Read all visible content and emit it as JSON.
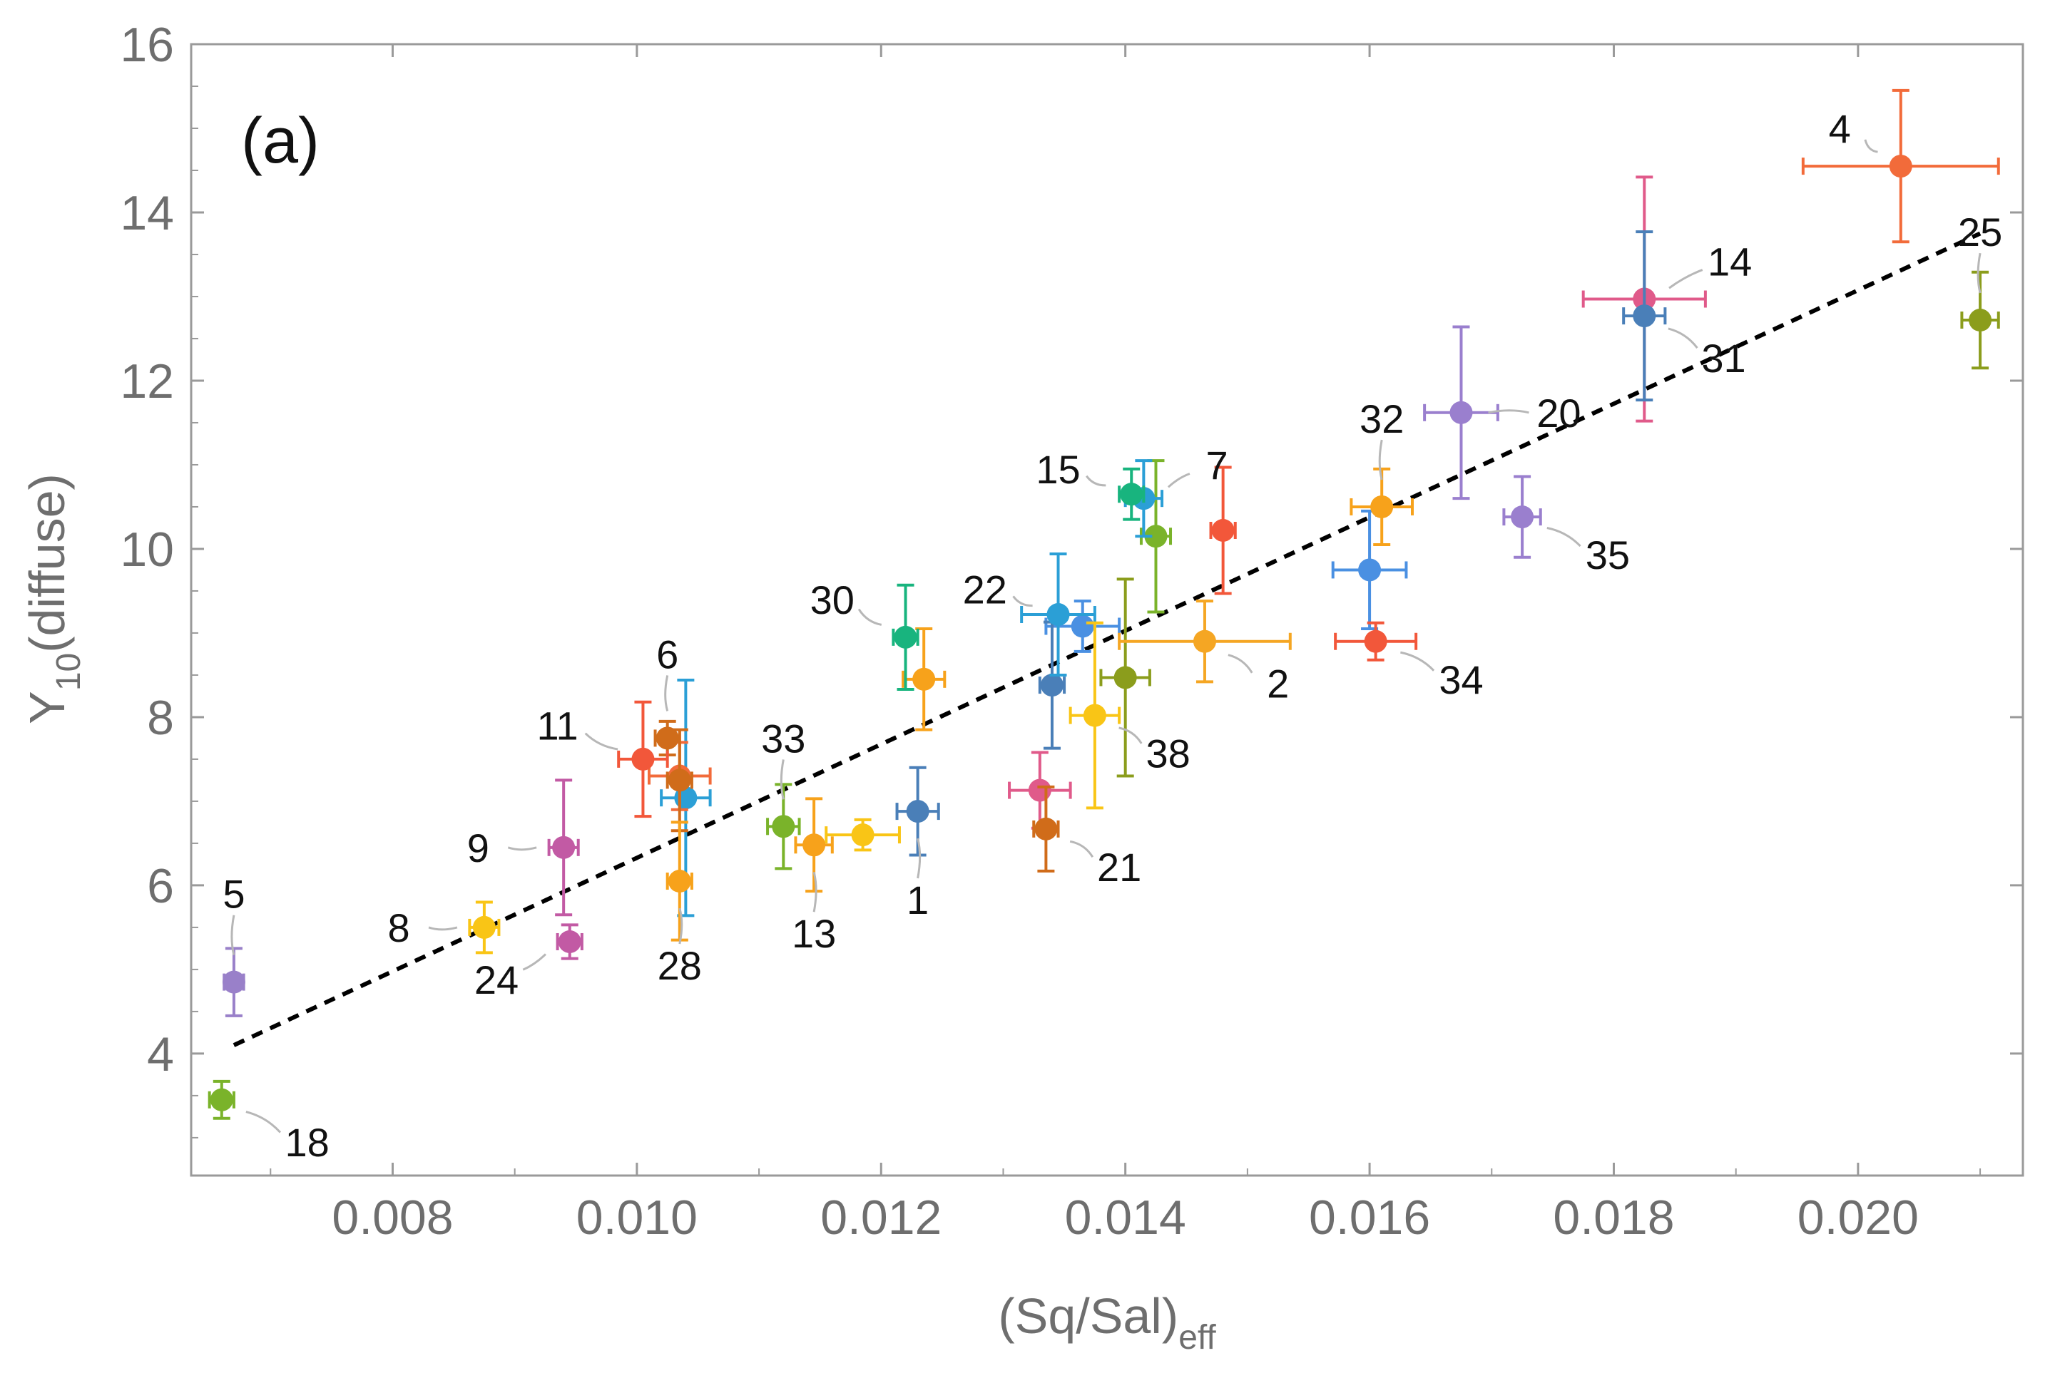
{
  "chart_data": {
    "type": "scatter",
    "panel_label": "(a)",
    "xlabel": "(Sq/Sal)",
    "xlabel_sub": "eff",
    "ylabel": "Y",
    "ylabel_sub": "10",
    "ylabel_suffix": "(diffuse)",
    "xlim": [
      0.00635,
      0.02135
    ],
    "ylim": [
      2.55,
      16.0
    ],
    "x_ticks": [
      0.008,
      0.01,
      0.012,
      0.014,
      0.016,
      0.018,
      0.02
    ],
    "x_tick_labels": [
      "0.008",
      "0.010",
      "0.012",
      "0.014",
      "0.016",
      "0.018",
      "0.020"
    ],
    "y_ticks": [
      4,
      6,
      8,
      10,
      12,
      14,
      16
    ],
    "y_tick_labels": [
      "4",
      "6",
      "8",
      "10",
      "12",
      "14",
      "16"
    ],
    "grid": false,
    "fit_line": {
      "style": "dashed",
      "color": "#000000",
      "x": [
        0.0067,
        0.021
      ],
      "y": [
        4.1,
        13.75
      ]
    },
    "points": [
      {
        "id": "1",
        "x": 0.0123,
        "y": 6.88,
        "xerr": 0.00017,
        "yerr": 0.52,
        "color": "#4a7fb8",
        "label": "1",
        "label_dx": 0,
        "label_dy": -1.05
      },
      {
        "id": "2",
        "x": 0.01465,
        "y": 8.9,
        "xerr": 0.0007,
        "yerr": 0.48,
        "color": "#f5a623",
        "label": "2",
        "label_dx": 0.0006,
        "label_dy": -0.5
      },
      {
        "id": "4",
        "x": 0.02035,
        "y": 14.55,
        "xerr": 0.0008,
        "yerr": 0.9,
        "color": "#f26b3a",
        "label": "4",
        "label_dx": -0.0005,
        "label_dy": 0.45
      },
      {
        "id": "5",
        "x": 0.0067,
        "y": 4.85,
        "xerr": 8e-05,
        "yerr": 0.4,
        "color": "#9980c9",
        "label": "5",
        "label_dx": 0,
        "label_dy": 1.05
      },
      {
        "id": "6",
        "x": 0.01025,
        "y": 7.75,
        "xerr": 0.0001,
        "yerr": 0.2,
        "color": "#d06c1a",
        "label": "6",
        "label_dx": 0,
        "label_dy": 1.0
      },
      {
        "id": "7",
        "x": 0.01415,
        "y": 10.6,
        "xerr": 0.00015,
        "yerr": 0.45,
        "color": "#2b9fd6",
        "label": "7",
        "label_dx": 0.0006,
        "label_dy": 0.4
      },
      {
        "id": "8",
        "x": 0.00875,
        "y": 5.5,
        "xerr": 0.00012,
        "yerr": 0.3,
        "color": "#f9c516",
        "label": "8",
        "label_dx": -0.0007,
        "label_dy": 0
      },
      {
        "id": "9",
        "x": 0.0094,
        "y": 6.45,
        "xerr": 0.00012,
        "yerr": 0.8,
        "color": "#c25aa4",
        "label": "9",
        "label_dx": -0.0007,
        "label_dy": 0
      },
      {
        "id": "11",
        "x": 0.01005,
        "y": 7.5,
        "xerr": 0.0002,
        "yerr": 0.68,
        "color": "#f2573a",
        "label": "11",
        "label_dx": -0.0007,
        "label_dy": 0.4
      },
      {
        "id": "13",
        "x": 0.01145,
        "y": 6.48,
        "xerr": 0.00015,
        "yerr": 0.55,
        "color": "#f7a21b",
        "label": "13",
        "label_dx": 0,
        "label_dy": -1.05
      },
      {
        "id": "14",
        "x": 0.01825,
        "y": 12.97,
        "xerr": 0.0005,
        "yerr": 1.45,
        "color": "#e05a8a",
        "label": "14",
        "label_dx": 0.0007,
        "label_dy": 0.45
      },
      {
        "id": "15",
        "x": 0.01405,
        "y": 10.65,
        "xerr": 0.0001,
        "yerr": 0.3,
        "color": "#18b47e",
        "label": "15",
        "label_dx": -0.0006,
        "label_dy": 0.3
      },
      {
        "id": "18",
        "x": 0.0066,
        "y": 3.45,
        "xerr": 0.0001,
        "yerr": 0.22,
        "color": "#7ab32a",
        "label": "18",
        "label_dx": 0.0007,
        "label_dy": -0.5
      },
      {
        "id": "20",
        "x": 0.01675,
        "y": 11.62,
        "xerr": 0.0003,
        "yerr": 1.02,
        "color": "#9a7fce",
        "label": "20",
        "label_dx": 0.0008,
        "label_dy": 0
      },
      {
        "id": "21",
        "x": 0.01335,
        "y": 6.67,
        "xerr": 0.0001,
        "yerr": 0.5,
        "color": "#d06c1a",
        "label": "21",
        "label_dx": 0.0006,
        "label_dy": -0.45
      },
      {
        "id": "22",
        "x": 0.01345,
        "y": 9.22,
        "xerr": 0.0003,
        "yerr": 0.72,
        "color": "#2b9fd6",
        "label": "22",
        "label_dx": -0.0006,
        "label_dy": 0.3
      },
      {
        "id": "24",
        "x": 0.00945,
        "y": 5.33,
        "xerr": 0.0001,
        "yerr": 0.2,
        "color": "#c25aa4",
        "label": "24",
        "label_dx": -0.0006,
        "label_dy": -0.45
      },
      {
        "id": "25",
        "x": 0.021,
        "y": 12.72,
        "xerr": 0.00015,
        "yerr": 0.57,
        "color": "#8b9d1c",
        "label": "25",
        "label_dx": 0,
        "label_dy": 1.05
      },
      {
        "id": "28",
        "x": 0.01035,
        "y": 6.05,
        "xerr": 0.0001,
        "yerr": 0.7,
        "color": "#f7a21b",
        "label": "28",
        "label_dx": 0,
        "label_dy": -1.0
      },
      {
        "id": "30",
        "x": 0.0122,
        "y": 8.95,
        "xerr": 0.0001,
        "yerr": 0.62,
        "color": "#18b47e",
        "label": "30",
        "label_dx": -0.0006,
        "label_dy": 0.45
      },
      {
        "id": "31",
        "x": 0.01825,
        "y": 12.77,
        "xerr": 0.00017,
        "yerr": 1.0,
        "color": "#4a7fb8",
        "label": "31",
        "label_dx": 0.00065,
        "label_dy": -0.5
      },
      {
        "id": "32",
        "x": 0.0161,
        "y": 10.5,
        "xerr": 0.00025,
        "yerr": 0.45,
        "color": "#f7a21b",
        "label": "32",
        "label_dx": 0,
        "label_dy": 1.05
      },
      {
        "id": "33",
        "x": 0.0112,
        "y": 6.7,
        "xerr": 0.00013,
        "yerr": 0.5,
        "color": "#7ab32a",
        "label": "33",
        "label_dx": 0,
        "label_dy": 1.05
      },
      {
        "id": "34",
        "x": 0.01605,
        "y": 8.9,
        "xerr": 0.00033,
        "yerr": 0.22,
        "color": "#f2573a",
        "label": "34",
        "label_dx": 0.0007,
        "label_dy": -0.45
      },
      {
        "id": "35",
        "x": 0.01725,
        "y": 10.38,
        "xerr": 0.00015,
        "yerr": 0.48,
        "color": "#9a7fce",
        "label": "35",
        "label_dx": 0.0007,
        "label_dy": -0.45
      },
      {
        "id": "38",
        "x": 0.01375,
        "y": 8.02,
        "xerr": 0.0002,
        "yerr": 1.1,
        "color": "#f9c516",
        "label": "38",
        "label_dx": 0.0006,
        "label_dy": -0.45
      }
    ],
    "unlabeled_points": [
      {
        "x": 0.0148,
        "y": 10.22,
        "xerr": 0.0001,
        "yerr": 0.75,
        "color": "#f2573a"
      },
      {
        "x": 0.01425,
        "y": 10.15,
        "xerr": 0.00012,
        "yerr": 0.9,
        "color": "#7ab32a"
      },
      {
        "x": 0.01365,
        "y": 9.08,
        "xerr": 0.0003,
        "yerr": 0.3,
        "color": "#4a90e2"
      },
      {
        "x": 0.016,
        "y": 9.75,
        "xerr": 0.0003,
        "yerr": 0.7,
        "color": "#4a90e2"
      },
      {
        "x": 0.0134,
        "y": 8.38,
        "xerr": 0.0001,
        "yerr": 0.75,
        "color": "#4a7fb8"
      },
      {
        "x": 0.01235,
        "y": 8.45,
        "xerr": 0.00017,
        "yerr": 0.6,
        "color": "#f7a21b"
      },
      {
        "x": 0.014,
        "y": 8.47,
        "xerr": 0.0002,
        "yerr": 1.17,
        "color": "#8b9d1c"
      },
      {
        "x": 0.0133,
        "y": 7.13,
        "xerr": 0.00025,
        "yerr": 0.45,
        "color": "#e05a8a"
      },
      {
        "x": 0.01185,
        "y": 6.6,
        "xerr": 0.0003,
        "yerr": 0.18,
        "color": "#f9c516"
      },
      {
        "x": 0.0104,
        "y": 7.04,
        "xerr": 0.0002,
        "yerr": 1.4,
        "color": "#2b9fd6"
      },
      {
        "x": 0.01035,
        "y": 7.3,
        "xerr": 0.00025,
        "yerr": 0.4,
        "color": "#f26b3a"
      },
      {
        "x": 0.01035,
        "y": 7.25,
        "xerr": 0.0001,
        "yerr": 0.6,
        "color": "#d06c1a"
      }
    ]
  }
}
